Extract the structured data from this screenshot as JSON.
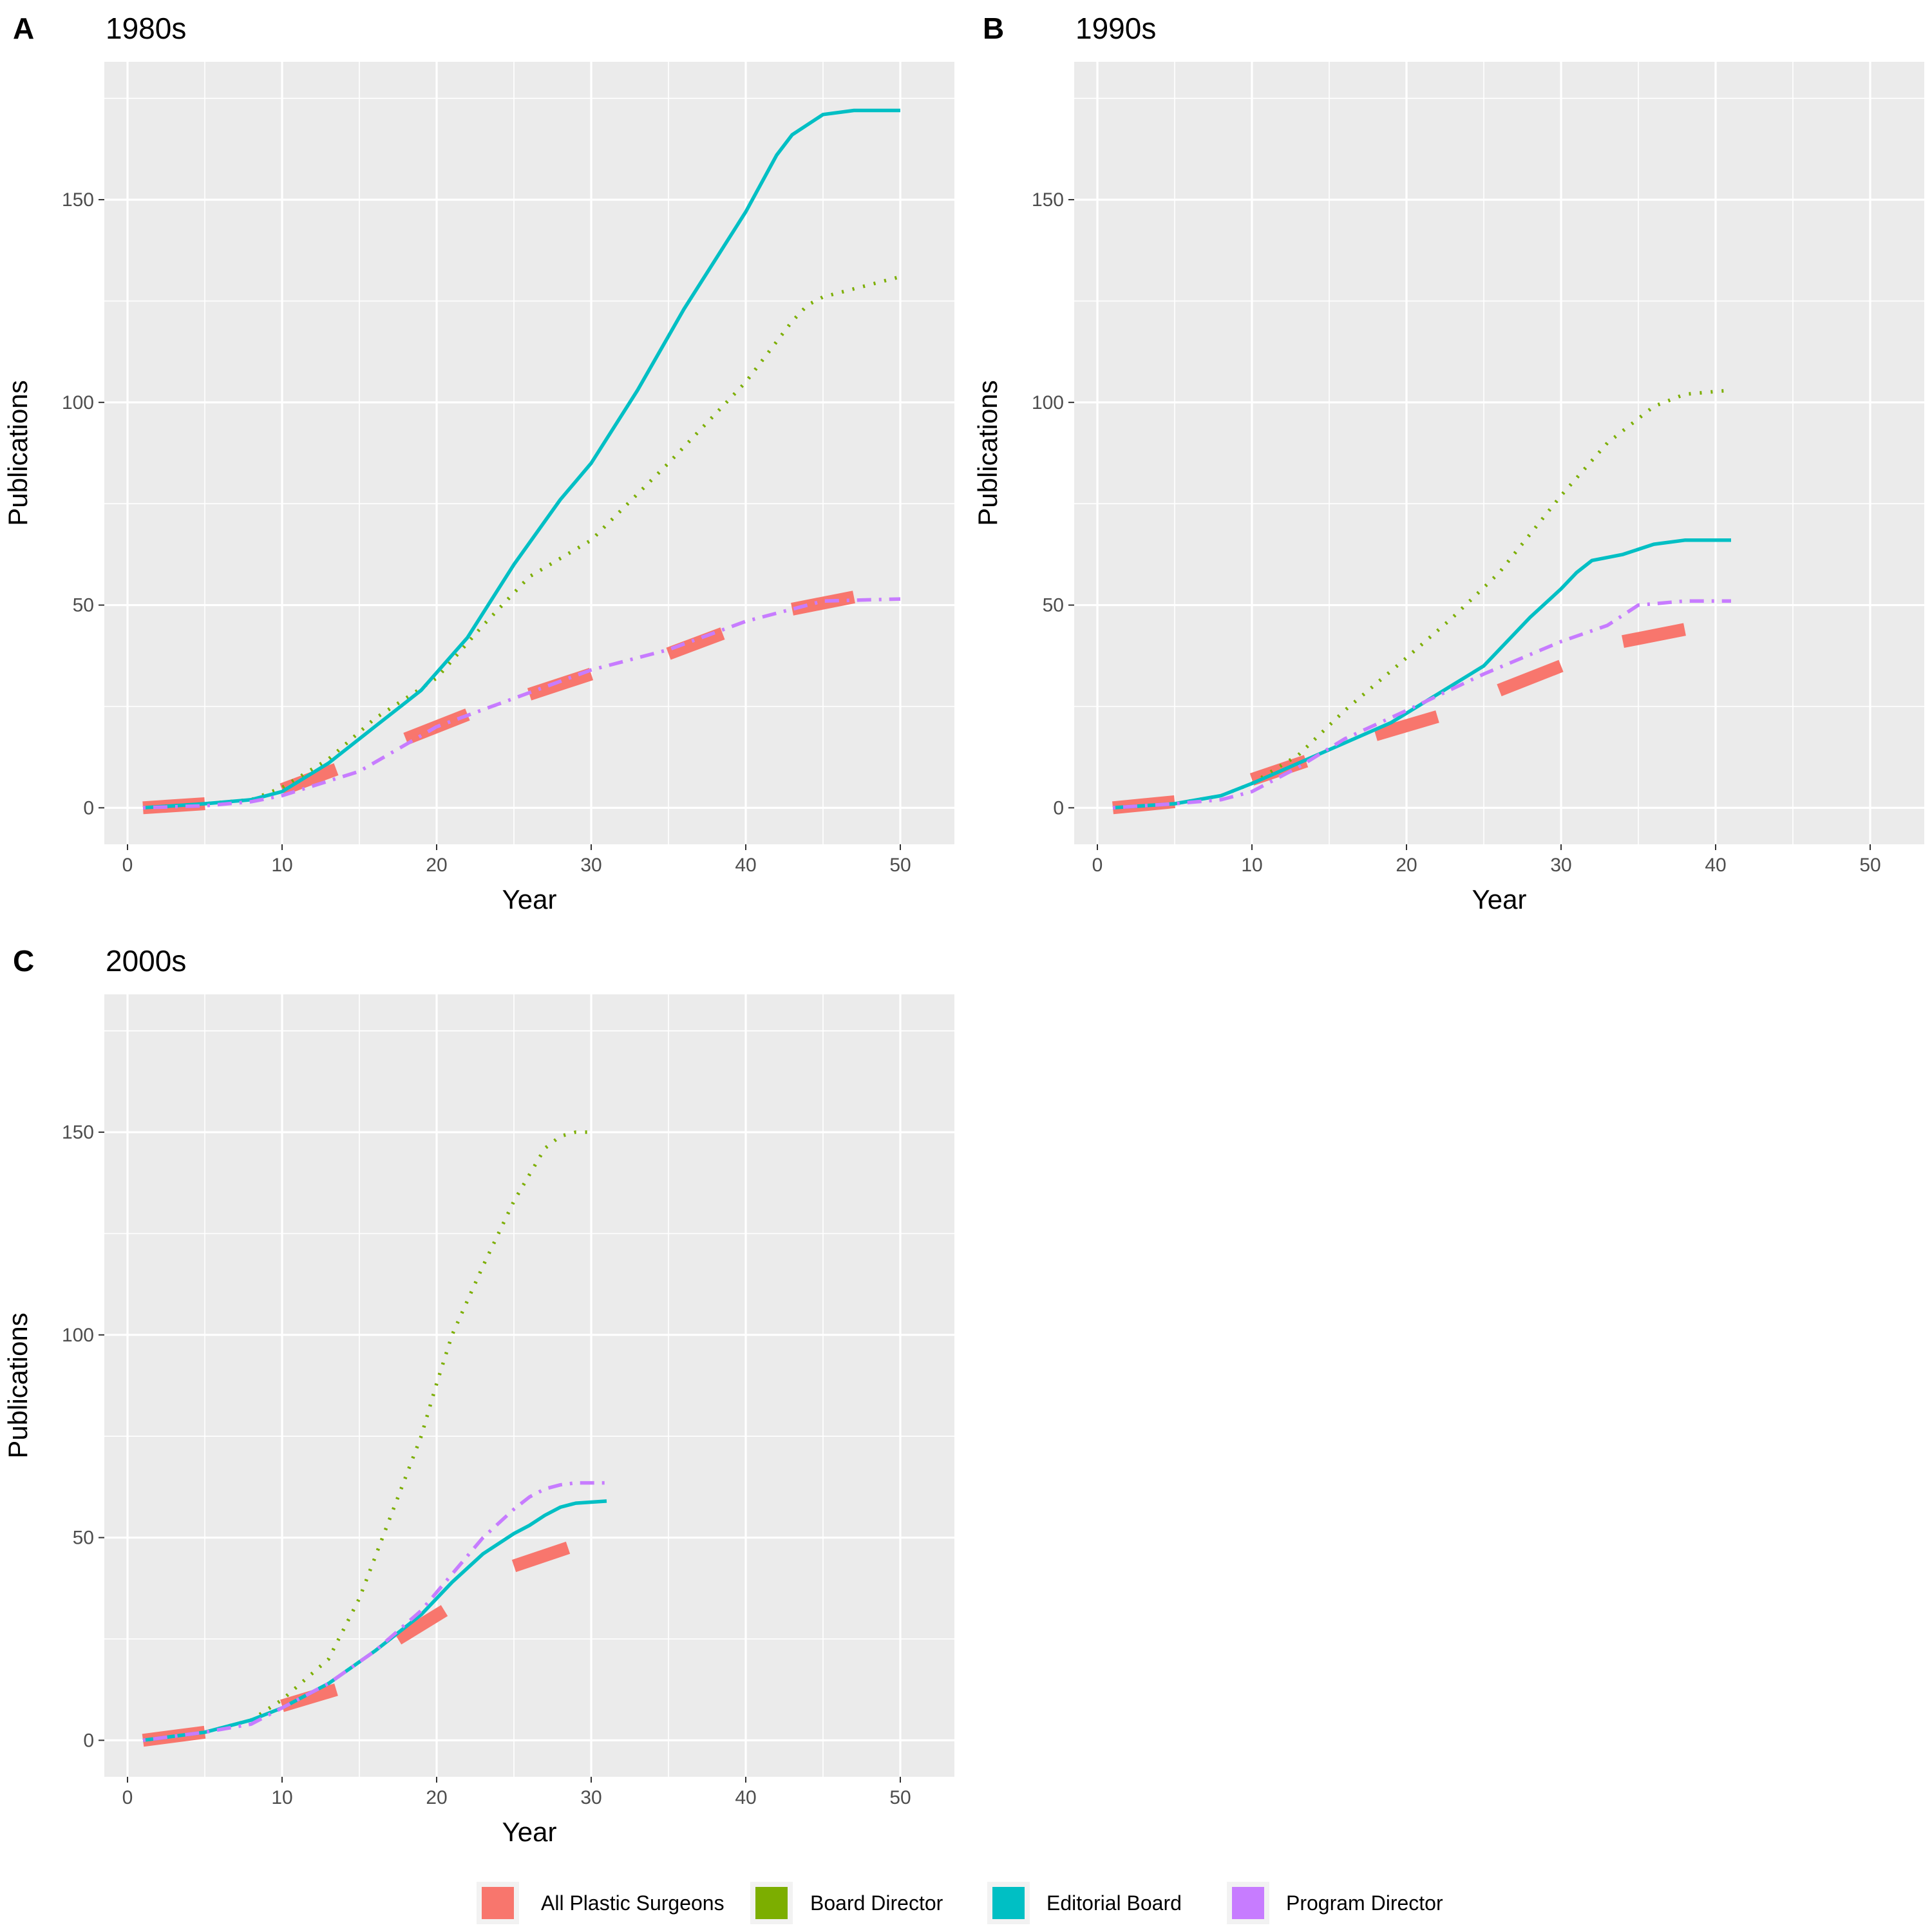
{
  "legend": {
    "entries": [
      {
        "label": "All Plastic Surgeons",
        "color": "#F8766D"
      },
      {
        "label": "Board Director",
        "color": "#7CAE00"
      },
      {
        "label": "Editorial Board",
        "color": "#00BFC4"
      },
      {
        "label": "Program Director",
        "color": "#C77CFF"
      }
    ]
  },
  "chart_data": [
    {
      "type": "line",
      "panel_letter": "A",
      "title": "1980s",
      "xlabel": "Year",
      "ylabel": "Publications",
      "xlim": [
        -1.5,
        53.5
      ],
      "ylim": [
        -9,
        184
      ],
      "xticks": [
        0,
        10,
        20,
        30,
        40,
        50
      ],
      "yticks": [
        0,
        50,
        100,
        150
      ],
      "grid": true,
      "legend_position": "bottom",
      "series": [
        {
          "name": "Board Director",
          "color": "#7CAE00",
          "style": "dotted",
          "x": [
            1,
            5,
            8,
            10,
            13,
            16,
            20,
            23,
            26,
            30,
            35,
            40,
            43,
            44,
            45,
            47,
            50
          ],
          "y": [
            0,
            1,
            2,
            5,
            12,
            22,
            32,
            45,
            57,
            66,
            85,
            105,
            120,
            124,
            126,
            128,
            131
          ]
        },
        {
          "name": "Editorial Board",
          "color": "#00BFC4",
          "style": "solid",
          "x": [
            1,
            5,
            8,
            10,
            13,
            16,
            19,
            22,
            25,
            28,
            30,
            33,
            36,
            38,
            40,
            42,
            43,
            45,
            47,
            50
          ],
          "y": [
            0,
            1,
            2,
            4,
            11,
            20,
            29,
            42,
            60,
            76,
            85,
            103,
            123,
            135,
            147,
            161,
            166,
            171,
            172,
            172
          ]
        },
        {
          "name": "Program Director",
          "color": "#C77CFF",
          "style": "dotdash",
          "x": [
            1,
            5,
            8,
            10,
            15,
            20,
            25,
            30,
            35,
            40,
            45,
            50
          ],
          "y": [
            0,
            0.5,
            1.5,
            3,
            9,
            20,
            27,
            34,
            39,
            46,
            51,
            51.5
          ]
        },
        {
          "name": "All Plastic Surgeons",
          "color": "#F8766D",
          "style": "longdash",
          "x": [
            1,
            5,
            10,
            13.5,
            18,
            22,
            26,
            30,
            35,
            38.5,
            43,
            47
          ],
          "y": [
            0,
            1,
            4.5,
            9.5,
            17,
            23,
            28,
            33,
            38,
            43,
            49,
            52
          ],
          "segments": [
            [
              1,
              5
            ],
            [
              10,
              13.5
            ],
            [
              18,
              22
            ],
            [
              26,
              30
            ],
            [
              35,
              38.5
            ],
            [
              43,
              47
            ]
          ]
        }
      ]
    },
    {
      "type": "line",
      "panel_letter": "B",
      "title": "1990s",
      "xlabel": "Year",
      "ylabel": "Publications",
      "xlim": [
        -1.5,
        53.5
      ],
      "ylim": [
        -9,
        184
      ],
      "xticks": [
        0,
        10,
        20,
        30,
        40,
        50
      ],
      "yticks": [
        0,
        50,
        100,
        150
      ],
      "grid": true,
      "legend_position": "bottom",
      "series": [
        {
          "name": "Board Director",
          "color": "#7CAE00",
          "style": "dotted",
          "x": [
            1,
            5,
            8,
            10,
            13,
            16,
            20,
            23,
            26,
            30,
            33,
            36,
            38,
            41
          ],
          "y": [
            0,
            1,
            3,
            6,
            13,
            24,
            37,
            47,
            58,
            77,
            90,
            99,
            102,
            103
          ]
        },
        {
          "name": "Editorial Board",
          "color": "#00BFC4",
          "style": "solid",
          "x": [
            1,
            5,
            8,
            10,
            13,
            16,
            19,
            22,
            25,
            28,
            30,
            31,
            32,
            34,
            36,
            38,
            41
          ],
          "y": [
            0,
            1,
            3,
            6,
            11,
            16,
            21,
            28,
            35,
            47,
            54,
            58,
            61,
            62.5,
            65,
            66,
            66
          ]
        },
        {
          "name": "Program Director",
          "color": "#C77CFF",
          "style": "dotdash",
          "x": [
            1,
            5,
            8,
            10,
            13,
            16,
            20,
            25,
            30,
            33,
            35,
            38,
            41
          ],
          "y": [
            0,
            1,
            2,
            4,
            10,
            17,
            24,
            33,
            41,
            45,
            50,
            51,
            51
          ]
        },
        {
          "name": "All Plastic Surgeons",
          "color": "#F8766D",
          "style": "longdash",
          "x": [
            1,
            5,
            10,
            13.5,
            18,
            22,
            26,
            30,
            34,
            38
          ],
          "y": [
            0,
            1.5,
            7,
            11.5,
            18,
            22.5,
            29,
            35,
            41,
            44
          ],
          "segments": [
            [
              1,
              5
            ],
            [
              10,
              13.5
            ],
            [
              18,
              22
            ],
            [
              26,
              30
            ],
            [
              34,
              38
            ]
          ]
        }
      ]
    },
    {
      "type": "line",
      "panel_letter": "C",
      "title": "2000s",
      "xlabel": "Year",
      "ylabel": "Publications",
      "xlim": [
        -1.5,
        53.5
      ],
      "ylim": [
        -9,
        184
      ],
      "xticks": [
        0,
        10,
        20,
        30,
        40,
        50
      ],
      "yticks": [
        0,
        50,
        100,
        150
      ],
      "grid": true,
      "legend_position": "bottom",
      "series": [
        {
          "name": "Board Director",
          "color": "#7CAE00",
          "style": "dotted",
          "x": [
            1,
            5,
            8,
            10,
            13,
            15,
            17,
            19,
            20,
            21,
            23,
            25,
            27,
            28,
            29,
            30
          ],
          "y": [
            0,
            2,
            5,
            10,
            20,
            35,
            55,
            75,
            88,
            100,
            117,
            133,
            146,
            149,
            150,
            150
          ]
        },
        {
          "name": "Editorial Board",
          "color": "#00BFC4",
          "style": "solid",
          "x": [
            1,
            5,
            8,
            10,
            13,
            16,
            19,
            21,
            23,
            25,
            26,
            27,
            28,
            29,
            31
          ],
          "y": [
            0,
            2,
            5,
            8,
            14,
            22,
            31,
            39,
            46,
            51,
            53,
            55.5,
            57.5,
            58.5,
            59
          ]
        },
        {
          "name": "Program Director",
          "color": "#C77CFF",
          "style": "dotdash",
          "x": [
            1,
            5,
            8,
            10,
            13,
            16,
            19,
            21,
            23,
            25,
            26,
            27,
            28,
            29,
            31
          ],
          "y": [
            0,
            2,
            4,
            8,
            14,
            22,
            32,
            41,
            50,
            57,
            60,
            62,
            63,
            63.5,
            63.5
          ]
        },
        {
          "name": "All Plastic Surgeons",
          "color": "#F8766D",
          "style": "longdash",
          "x": [
            1,
            5,
            10,
            13.5,
            17.5,
            20.5,
            25,
            28.5
          ],
          "y": [
            0,
            2,
            8.5,
            12.5,
            25,
            32,
            43,
            47.5
          ],
          "segments": [
            [
              1,
              5
            ],
            [
              10,
              13.5
            ],
            [
              17.5,
              20.5
            ],
            [
              25,
              28.5
            ]
          ]
        }
      ]
    }
  ]
}
